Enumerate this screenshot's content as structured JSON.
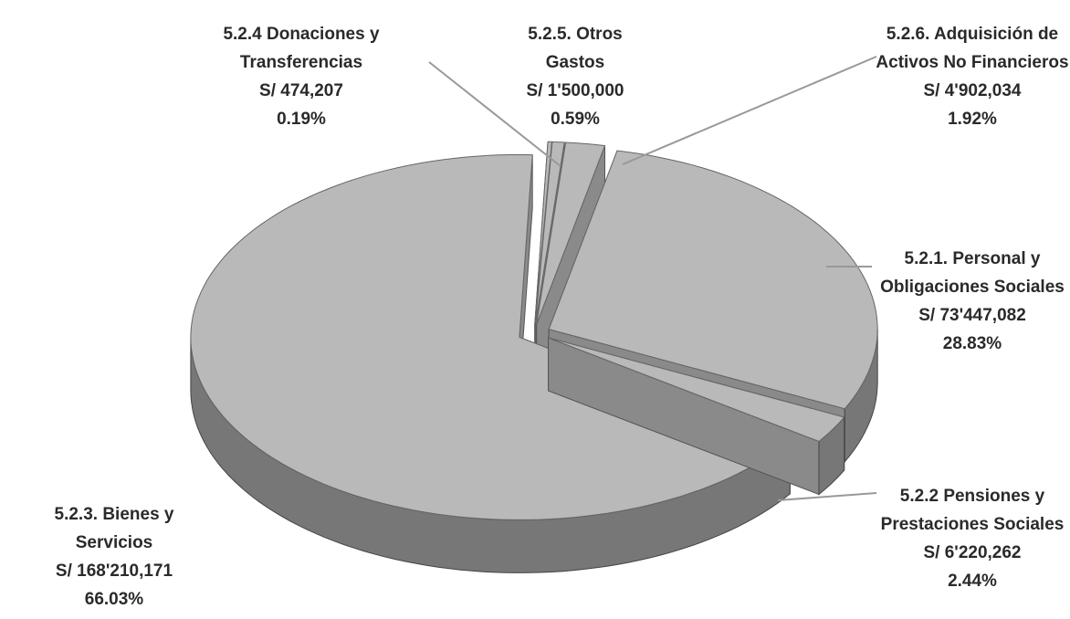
{
  "chart_data": {
    "type": "pie3d",
    "categories": [
      "5.2.1. Personal y Obligaciones Sociales",
      "5.2.2 Pensiones y Prestaciones Sociales",
      "5.2.3. Bienes y Servicios",
      "5.2.4 Donaciones y Transferencias",
      "5.2.5. Otros Gastos",
      "5.2.6. Adquisición de Activos No Financieros"
    ],
    "values": [
      28.83,
      2.44,
      66.03,
      0.19,
      0.59,
      1.92
    ],
    "value_labels": [
      "28.83%",
      "2.44%",
      "66.03%",
      "0.19%",
      "0.59%",
      "1.92%"
    ],
    "amounts": [
      73447082,
      6220262,
      168210171,
      474207,
      1500000,
      4902034
    ],
    "amount_labels": [
      "S/ 73'447,082",
      "S/ 6'220,262",
      "S/ 168'210,171",
      "S/ 474,207",
      "S/ 1'500,000",
      "S/ 4'902,034"
    ],
    "color": "#b9b9b9"
  }
}
